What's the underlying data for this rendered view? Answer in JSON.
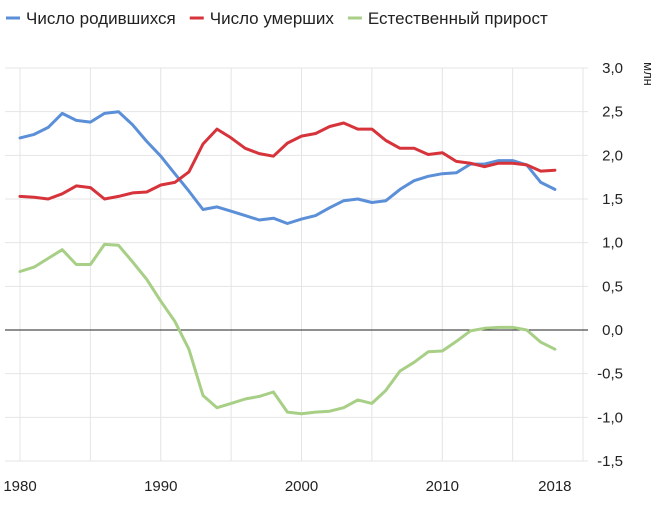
{
  "chart_data": {
    "type": "line",
    "unit": "млн",
    "ylim": [
      -1.5,
      3.0
    ],
    "xlim": [
      1980,
      2020
    ],
    "yticks": [
      "3,0",
      "2,5",
      "2,0",
      "1,5",
      "1,0",
      "0,5",
      "0,0",
      "-0,5",
      "-1,0",
      "-1,5"
    ],
    "xticks": [
      "1980",
      "1990",
      "2000",
      "2010",
      "2018"
    ],
    "grid": true,
    "legend_position": "top",
    "series": [
      {
        "name": "Число родившихся",
        "color": "#5b8fd8",
        "points": [
          [
            1980,
            2.2
          ],
          [
            1981,
            2.24
          ],
          [
            1982,
            2.32
          ],
          [
            1983,
            2.48
          ],
          [
            1984,
            2.4
          ],
          [
            1985,
            2.38
          ],
          [
            1986,
            2.48
          ],
          [
            1987,
            2.5
          ],
          [
            1988,
            2.35
          ],
          [
            1989,
            2.16
          ],
          [
            1990,
            1.99
          ],
          [
            1991,
            1.79
          ],
          [
            1992,
            1.59
          ],
          [
            1993,
            1.38
          ],
          [
            1994,
            1.41
          ],
          [
            1995,
            1.36
          ],
          [
            1996,
            1.31
          ],
          [
            1997,
            1.26
          ],
          [
            1998,
            1.28
          ],
          [
            1999,
            1.22
          ],
          [
            2000,
            1.27
          ],
          [
            2001,
            1.31
          ],
          [
            2002,
            1.4
          ],
          [
            2003,
            1.48
          ],
          [
            2004,
            1.5
          ],
          [
            2005,
            1.46
          ],
          [
            2006,
            1.48
          ],
          [
            2007,
            1.61
          ],
          [
            2008,
            1.71
          ],
          [
            2009,
            1.76
          ],
          [
            2010,
            1.79
          ],
          [
            2011,
            1.8
          ],
          [
            2012,
            1.9
          ],
          [
            2013,
            1.9
          ],
          [
            2014,
            1.94
          ],
          [
            2015,
            1.94
          ],
          [
            2016,
            1.89
          ],
          [
            2017,
            1.69
          ],
          [
            2018,
            1.61
          ]
        ]
      },
      {
        "name": "Число умерших",
        "color": "#d6333b",
        "points": [
          [
            1980,
            1.53
          ],
          [
            1981,
            1.52
          ],
          [
            1982,
            1.5
          ],
          [
            1983,
            1.56
          ],
          [
            1984,
            1.65
          ],
          [
            1985,
            1.63
          ],
          [
            1986,
            1.5
          ],
          [
            1987,
            1.53
          ],
          [
            1988,
            1.57
          ],
          [
            1989,
            1.58
          ],
          [
            1990,
            1.66
          ],
          [
            1991,
            1.69
          ],
          [
            1992,
            1.81
          ],
          [
            1993,
            2.13
          ],
          [
            1994,
            2.3
          ],
          [
            1995,
            2.2
          ],
          [
            1996,
            2.08
          ],
          [
            1997,
            2.02
          ],
          [
            1998,
            1.99
          ],
          [
            1999,
            2.14
          ],
          [
            2000,
            2.22
          ],
          [
            2001,
            2.25
          ],
          [
            2002,
            2.33
          ],
          [
            2003,
            2.37
          ],
          [
            2004,
            2.3
          ],
          [
            2005,
            2.3
          ],
          [
            2006,
            2.17
          ],
          [
            2007,
            2.08
          ],
          [
            2008,
            2.08
          ],
          [
            2009,
            2.01
          ],
          [
            2010,
            2.03
          ],
          [
            2011,
            1.93
          ],
          [
            2012,
            1.91
          ],
          [
            2013,
            1.87
          ],
          [
            2014,
            1.91
          ],
          [
            2015,
            1.91
          ],
          [
            2016,
            1.89
          ],
          [
            2017,
            1.82
          ],
          [
            2018,
            1.83
          ]
        ]
      },
      {
        "name": "Естественный прирост",
        "color": "#a8cf86",
        "points": [
          [
            1980,
            0.67
          ],
          [
            1981,
            0.72
          ],
          [
            1982,
            0.82
          ],
          [
            1983,
            0.92
          ],
          [
            1984,
            0.75
          ],
          [
            1985,
            0.75
          ],
          [
            1986,
            0.98
          ],
          [
            1987,
            0.97
          ],
          [
            1988,
            0.78
          ],
          [
            1989,
            0.58
          ],
          [
            1990,
            0.33
          ],
          [
            1991,
            0.1
          ],
          [
            1992,
            -0.22
          ],
          [
            1993,
            -0.75
          ],
          [
            1994,
            -0.89
          ],
          [
            1995,
            -0.84
          ],
          [
            1996,
            -0.79
          ],
          [
            1997,
            -0.76
          ],
          [
            1998,
            -0.71
          ],
          [
            1999,
            -0.94
          ],
          [
            2000,
            -0.96
          ],
          [
            2001,
            -0.94
          ],
          [
            2002,
            -0.93
          ],
          [
            2003,
            -0.89
          ],
          [
            2004,
            -0.8
          ],
          [
            2005,
            -0.84
          ],
          [
            2006,
            -0.69
          ],
          [
            2007,
            -0.47
          ],
          [
            2008,
            -0.37
          ],
          [
            2009,
            -0.25
          ],
          [
            2010,
            -0.24
          ],
          [
            2011,
            -0.13
          ],
          [
            2012,
            -0.01
          ],
          [
            2013,
            0.02
          ],
          [
            2014,
            0.03
          ],
          [
            2015,
            0.03
          ],
          [
            2016,
            0.0
          ],
          [
            2017,
            -0.14
          ],
          [
            2018,
            -0.22
          ]
        ]
      }
    ]
  }
}
